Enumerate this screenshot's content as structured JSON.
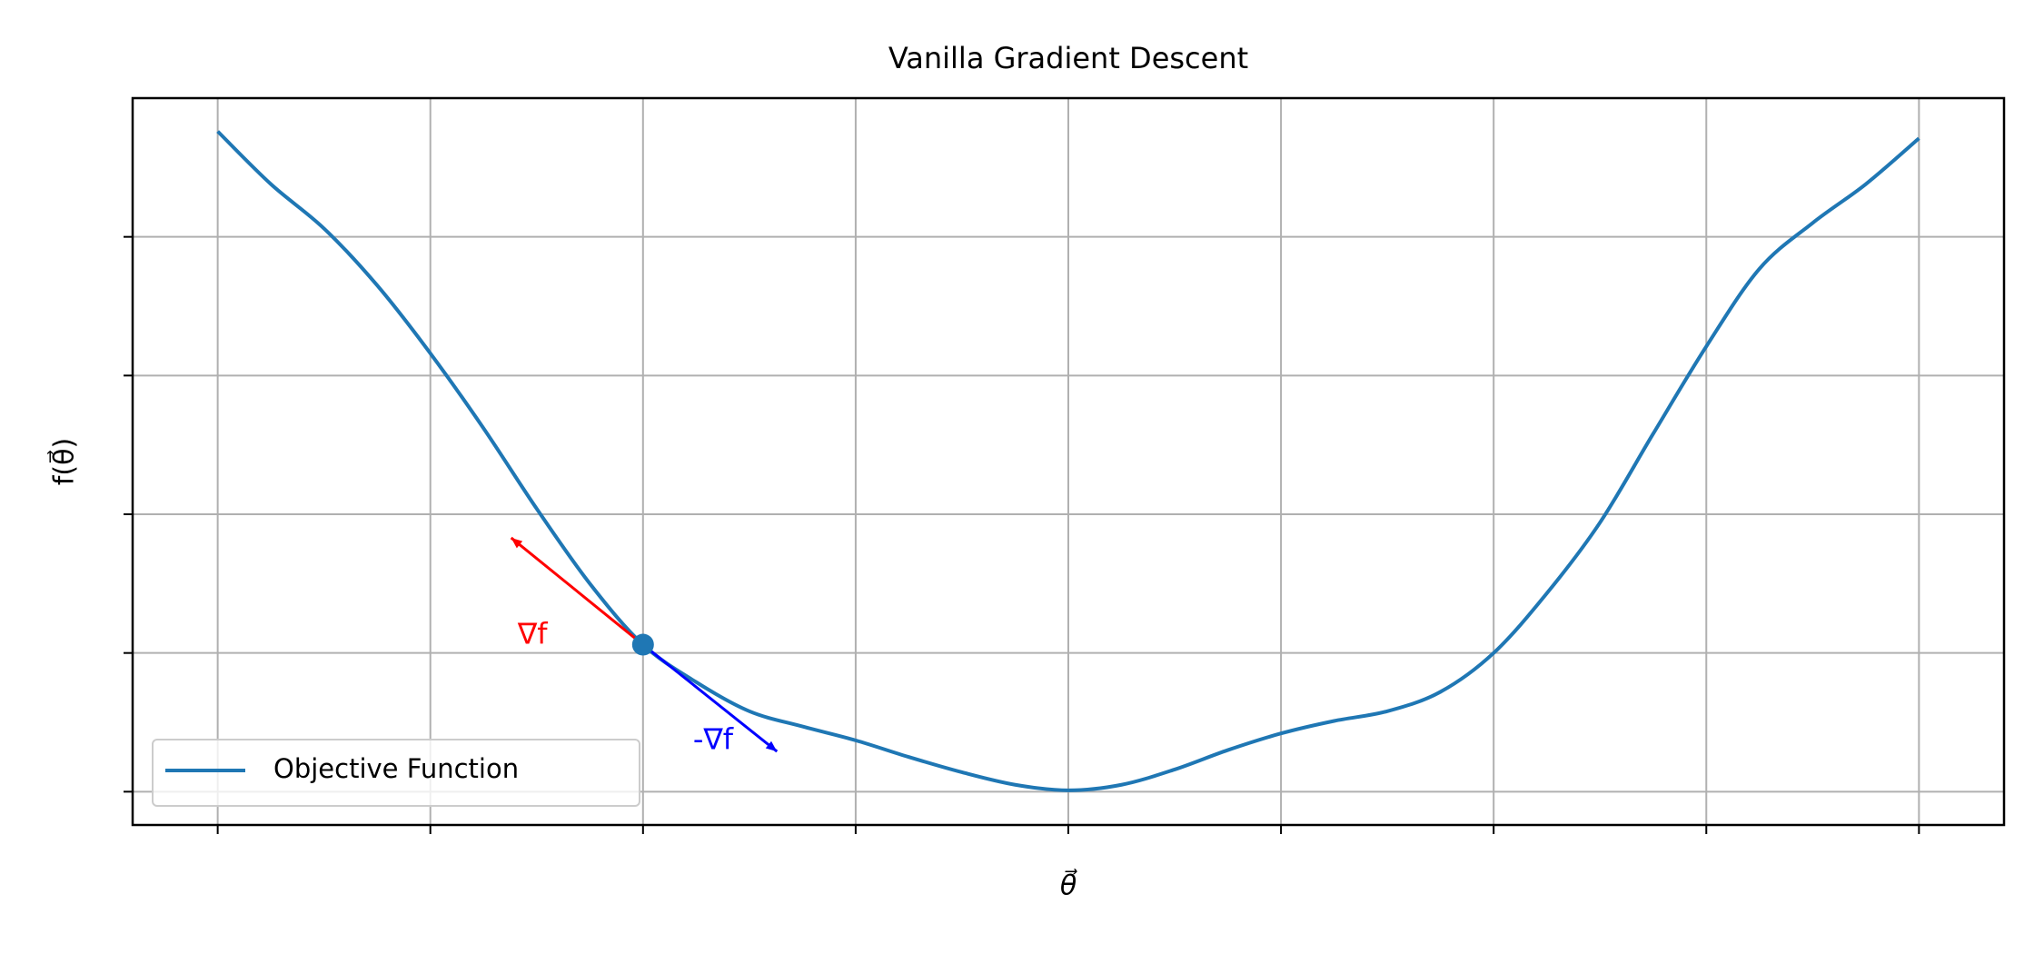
{
  "chart_data": {
    "type": "line",
    "title": "Vanilla Gradient Descent",
    "x_label": "θ⃗",
    "y_label": "f(θ⃗)",
    "x": [
      -4,
      -3.75,
      -3.5,
      -3.25,
      -3,
      -2.75,
      -2.5,
      -2.25,
      -2,
      -1.75,
      -1.5,
      -1.25,
      -1,
      -0.75,
      -0.5,
      -0.25,
      0,
      0.25,
      0.5,
      0.75,
      1,
      1.25,
      1.5,
      1.75,
      2,
      2.25,
      2.5,
      2.75,
      3,
      3.25,
      3.5,
      3.75,
      4
    ],
    "series": [
      {
        "name": "Objective Function",
        "color": "#1f77b4",
        "values": [
          4.76,
          4.38,
          4.06,
          3.65,
          3.16,
          2.62,
          2.04,
          1.5,
          1.06,
          0.79,
          0.58,
          0.47,
          0.37,
          0.25,
          0.14,
          0.05,
          0.01,
          0.05,
          0.16,
          0.3,
          0.42,
          0.51,
          0.58,
          0.72,
          1.0,
          1.43,
          1.94,
          2.58,
          3.21,
          3.77,
          4.1,
          4.38,
          4.71
        ]
      }
    ],
    "point": {
      "x": -2,
      "y": 1.06,
      "color": "#1f77b4"
    },
    "arrows": [
      {
        "label": "∇f",
        "color": "#ff0000",
        "x": [
          -2,
          -2.62
        ],
        "y": [
          1.06,
          1.83
        ]
      },
      {
        "label": "-∇f",
        "color": "#0000ff",
        "x": [
          -2,
          -1.37
        ],
        "y": [
          1.06,
          0.29
        ]
      }
    ],
    "xlim": [
      -4.4,
      4.4
    ],
    "ylim": [
      -0.24,
      5.0
    ],
    "xticks": [
      -4,
      -3,
      -2,
      -1,
      0,
      1,
      2,
      3,
      4
    ],
    "yticks": [
      0,
      1,
      2,
      3,
      4
    ],
    "grid": true,
    "legend": "lower left"
  }
}
